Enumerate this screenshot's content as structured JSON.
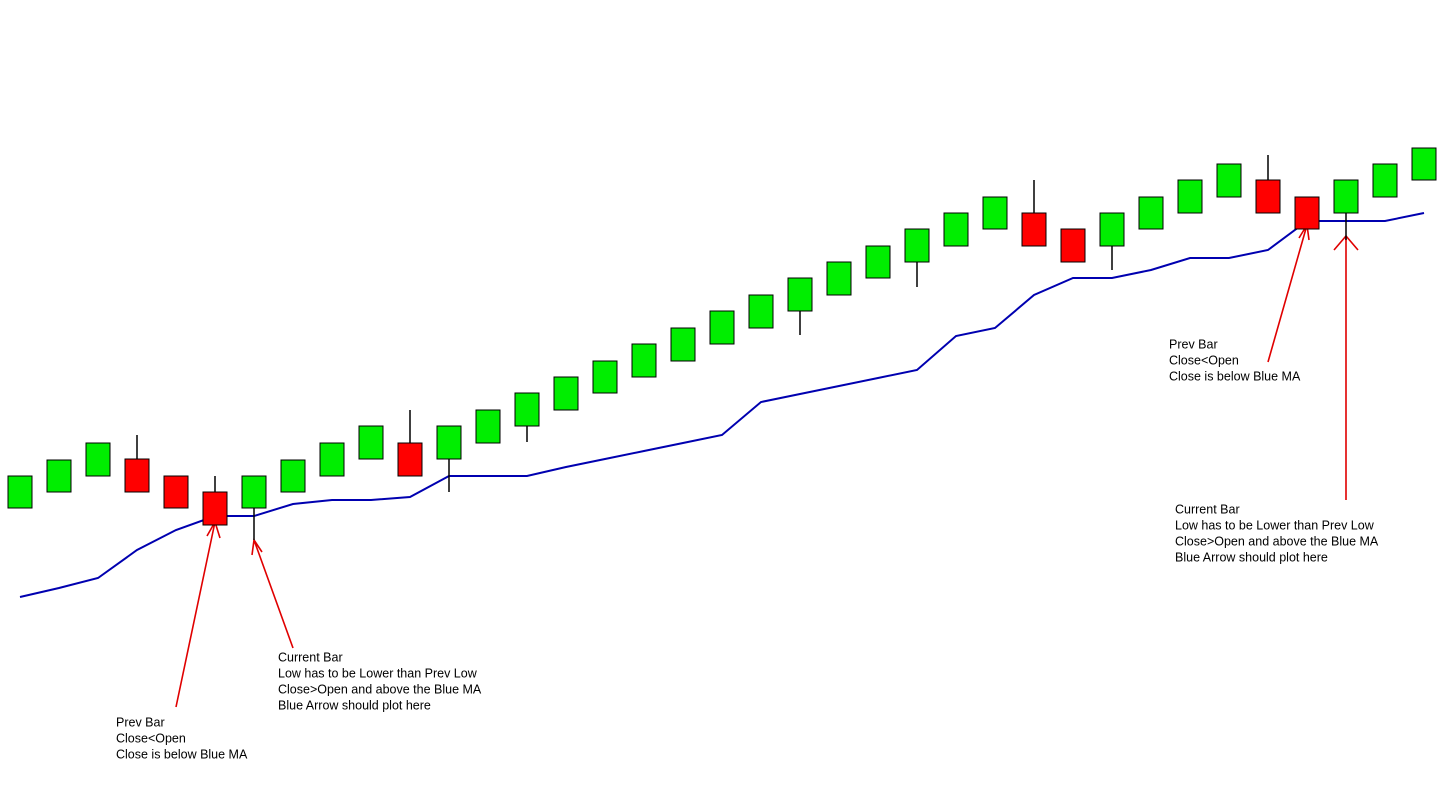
{
  "chart_data": {
    "type": "candlestick",
    "ylim": [
      0,
      793
    ],
    "up_color": "#00ee00",
    "down_color": "#ff0000",
    "ma_color": "#0000b0",
    "open": [
      285,
      301,
      317,
      334,
      317,
      301,
      285,
      301,
      317,
      334,
      350,
      334,
      350,
      367,
      383,
      400,
      416,
      432,
      449,
      465,
      482,
      498,
      515,
      531,
      547,
      564,
      580,
      564,
      547,
      564,
      580,
      596,
      613,
      596,
      580,
      596,
      613
    ],
    "high": [
      317,
      333,
      350,
      358,
      317,
      317,
      317,
      333,
      350,
      367,
      383,
      367,
      383,
      400,
      416,
      432,
      449,
      465,
      482,
      498,
      515,
      531,
      547,
      564,
      580,
      596,
      613,
      564,
      580,
      596,
      613,
      629,
      638,
      596,
      613,
      629,
      645
    ],
    "low": [
      285,
      301,
      317,
      301,
      285,
      268,
      253,
      301,
      317,
      334,
      317,
      301,
      350,
      351,
      383,
      400,
      416,
      432,
      449,
      465,
      458,
      498,
      515,
      506,
      547,
      564,
      547,
      531,
      523,
      564,
      580,
      596,
      580,
      564,
      553,
      596,
      613
    ],
    "close": [
      317,
      333,
      350,
      301,
      285,
      268,
      317,
      333,
      350,
      367,
      317,
      367,
      383,
      400,
      416,
      432,
      449,
      465,
      482,
      498,
      515,
      531,
      547,
      564,
      580,
      596,
      547,
      531,
      580,
      596,
      613,
      629,
      580,
      564,
      613,
      629,
      645
    ],
    "ma": {
      "name": "Blue MA",
      "values": [
        196,
        205,
        215,
        243,
        263,
        277,
        277,
        289,
        293,
        293,
        296,
        317,
        317,
        317,
        326,
        334,
        342,
        350,
        358,
        391,
        399,
        407,
        415,
        423,
        457,
        465,
        498,
        515,
        515,
        523,
        535,
        535,
        543,
        572,
        572,
        572,
        580
      ]
    },
    "annotations": [
      {
        "lines": [
          "Prev Bar",
          "Close<Open",
          "Close is below Blue MA"
        ]
      },
      {
        "lines": [
          "Current Bar",
          "Low has to be Lower than Prev Low",
          "Close>Open and above the Blue MA",
          "Blue Arrow should plot here"
        ]
      },
      {
        "lines": [
          "Prev Bar",
          "Close<Open",
          "Close is below Blue MA"
        ]
      },
      {
        "lines": [
          "Current Bar",
          "Low has to be Lower than Prev Low",
          "Close>Open and above the Blue MA",
          "Blue Arrow should plot here"
        ]
      }
    ]
  }
}
